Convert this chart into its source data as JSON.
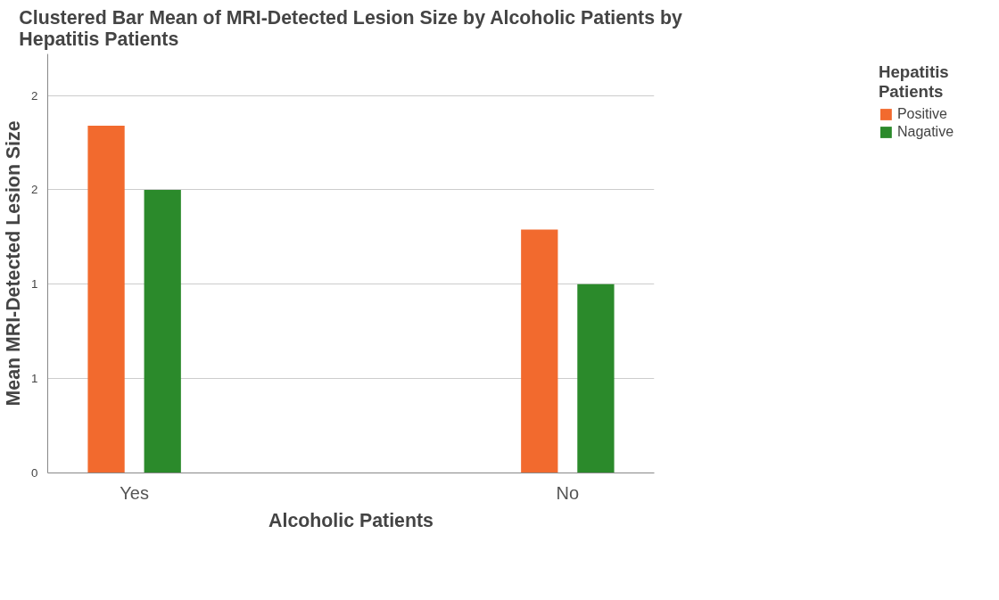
{
  "chart_data": {
    "type": "bar",
    "title": "Clustered Bar Mean of MRI-Detected Lesion Size by Alcoholic Patients by  Hepatitis Patients",
    "xlabel": "Alcoholic Patients",
    "ylabel": "Mean MRI-Detected Lesion Size",
    "legend_title": "Hepatitis Patients",
    "categories": [
      "Yes",
      "No"
    ],
    "series": [
      {
        "name": "Positive",
        "color": "#f26a2e",
        "values": [
          1.84,
          1.29
        ]
      },
      {
        "name": "Nagative",
        "color": "#2b8a2b",
        "values": [
          1.5,
          1.0
        ]
      }
    ],
    "ylim": [
      0,
      2.22
    ],
    "yticks": [
      0,
      {
        "value": 0.5,
        "label": "1"
      },
      {
        "value": 1,
        "label": "1"
      },
      {
        "value": 1.5,
        "label": "2"
      },
      {
        "value": 2,
        "label": "2"
      }
    ],
    "grid": "y",
    "legend": "top right"
  }
}
